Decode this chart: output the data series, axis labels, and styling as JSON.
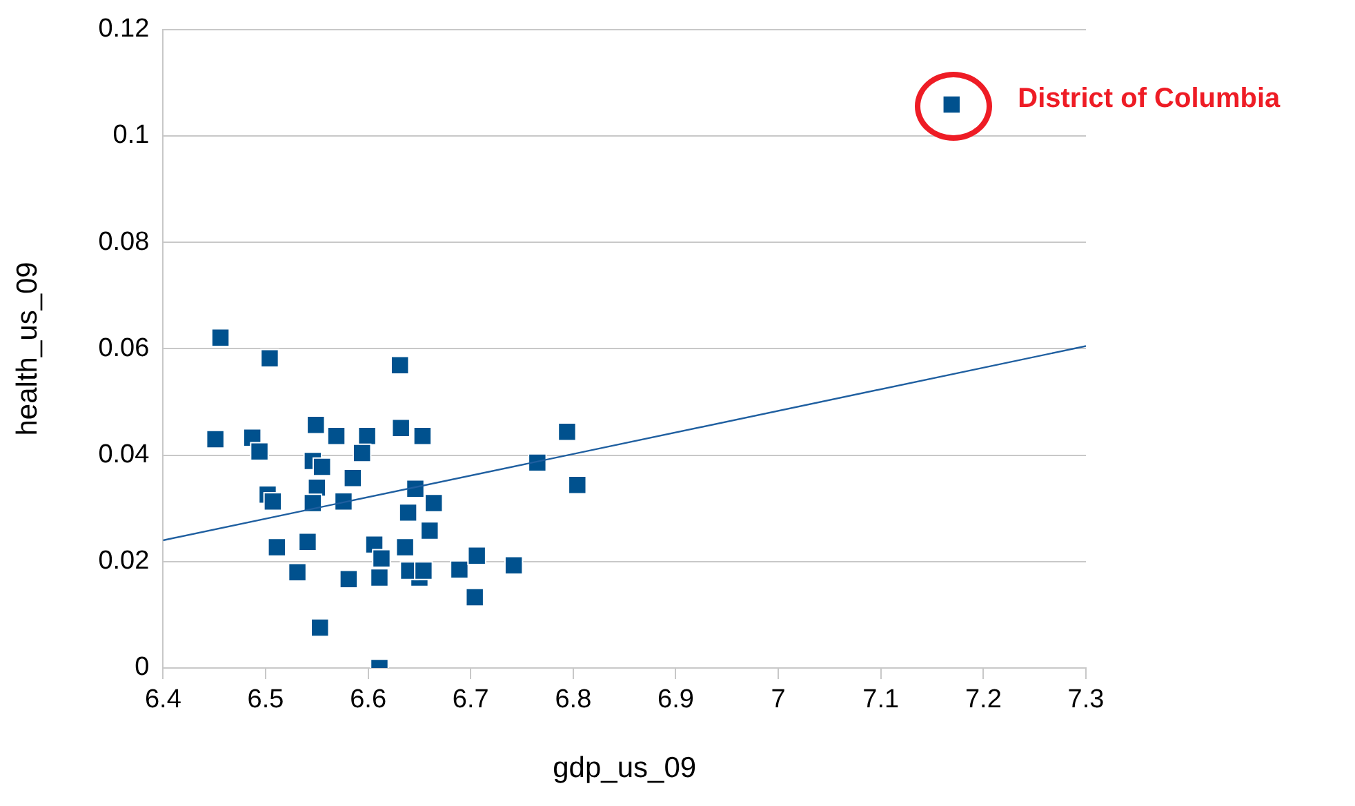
{
  "chart_data": {
    "type": "scatter",
    "xlabel": "gdp_us_09",
    "ylabel": "health_us_09",
    "xlim": [
      6.4,
      7.3
    ],
    "xticks": [
      6.4,
      6.5,
      6.6,
      6.7,
      6.8,
      6.9,
      7,
      7.1,
      7.2,
      7.3
    ],
    "ylim": [
      0,
      0.12
    ],
    "yticks": [
      0,
      0.02,
      0.04,
      0.06,
      0.08,
      0.1,
      0.12
    ],
    "grid": "y",
    "legend": false,
    "marker": "square",
    "annotations": [
      {
        "text": "District of Columbia",
        "x": 7.169,
        "y": 0.1059
      }
    ],
    "series": [
      {
        "color": "#00518e",
        "x": [
          6.456,
          6.504,
          6.631,
          6.451,
          6.487,
          6.494,
          6.549,
          6.569,
          6.599,
          6.632,
          6.653,
          6.546,
          6.594,
          6.555,
          6.502,
          6.507,
          6.55,
          6.585,
          6.546,
          6.576,
          6.646,
          6.639,
          6.664,
          6.66,
          6.511,
          6.541,
          6.531,
          6.606,
          6.581,
          6.611,
          6.636,
          6.65,
          6.64,
          6.553,
          6.611,
          6.613,
          6.654,
          6.689,
          6.706,
          6.704,
          6.742,
          6.765,
          6.794,
          6.804,
          7.169
        ],
        "values": [
          0.0621,
          0.0582,
          0.0569,
          0.043,
          0.0433,
          0.0407,
          0.0457,
          0.0436,
          0.0436,
          0.0451,
          0.0436,
          0.0389,
          0.0404,
          0.0378,
          0.0326,
          0.0313,
          0.0339,
          0.0357,
          0.031,
          0.0313,
          0.0337,
          0.0292,
          0.031,
          0.0258,
          0.0227,
          0.0237,
          0.018,
          0.0232,
          0.0167,
          0.017,
          0.0227,
          0.017,
          0.0183,
          0.0076,
          0,
          0.0206,
          0.0183,
          0.0185,
          0.0211,
          0.0133,
          0.0193,
          0.0386,
          0.0444,
          0.0344,
          0.1059
        ]
      },
      {
        "type": "line",
        "marker": "none",
        "color": "#1f5fa0",
        "x": [
          6.4,
          7.3
        ],
        "values": [
          0.024,
          0.0605
        ]
      }
    ]
  }
}
